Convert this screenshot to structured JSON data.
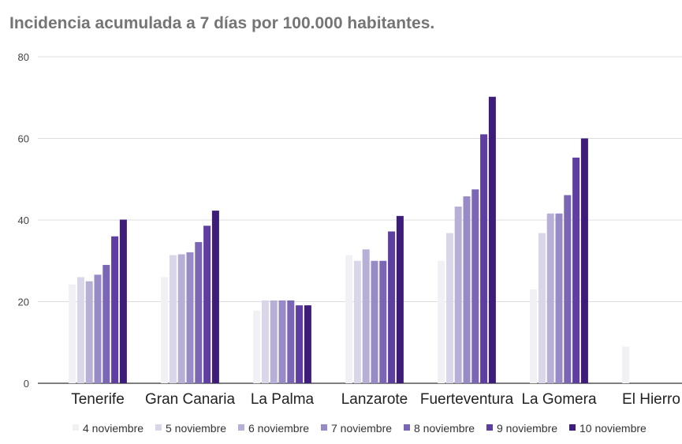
{
  "chart_data": {
    "type": "bar",
    "title": "Incidencia acumulada a 7 días por 100.000 habitantes.",
    "xlabel": "",
    "ylabel": "",
    "ylim": [
      0,
      80
    ],
    "yticks": [
      0,
      20,
      40,
      60,
      80
    ],
    "grid": true,
    "legend_position": "bottom",
    "categories": [
      "Tenerife",
      "Gran Canaria",
      "La Palma",
      "Lanzarote",
      "Fuerteventura",
      "La Gomera",
      "El Hierro"
    ],
    "series": [
      {
        "name": "4 noviembre",
        "color": "#f1f0f4",
        "values": [
          24.2,
          26.0,
          17.8,
          31.4,
          30.0,
          23.0,
          9.0
        ]
      },
      {
        "name": "5 noviembre",
        "color": "#dad6ea",
        "values": [
          26.0,
          31.4,
          20.3,
          30.0,
          36.8,
          36.8,
          0
        ]
      },
      {
        "name": "6 noviembre",
        "color": "#b8afd6",
        "values": [
          25.0,
          31.6,
          20.3,
          32.8,
          43.3,
          41.6,
          0
        ]
      },
      {
        "name": "7 noviembre",
        "color": "#978ac6",
        "values": [
          26.6,
          32.1,
          20.3,
          30.0,
          45.8,
          41.6,
          0
        ]
      },
      {
        "name": "8 noviembre",
        "color": "#7a66b5",
        "values": [
          29.0,
          34.6,
          20.3,
          30.0,
          47.5,
          46.1,
          0
        ]
      },
      {
        "name": "9 noviembre",
        "color": "#5e3ea0",
        "values": [
          36.0,
          38.6,
          19.1,
          37.2,
          61.0,
          55.3,
          0
        ]
      },
      {
        "name": "10 noviembre",
        "color": "#3e1d7a",
        "values": [
          40.1,
          42.3,
          19.1,
          41.0,
          70.2,
          60.0,
          0
        ]
      }
    ]
  }
}
